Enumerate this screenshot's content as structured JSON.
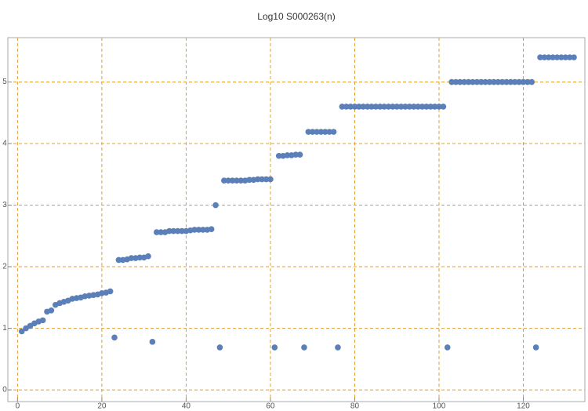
{
  "chart_data": {
    "type": "scatter",
    "title": "Log10 S000263(n)",
    "x": [
      1,
      2,
      3,
      4,
      5,
      6,
      7,
      8,
      9,
      10,
      11,
      12,
      13,
      14,
      15,
      16,
      17,
      18,
      19,
      20,
      21,
      22,
      23,
      24,
      25,
      26,
      27,
      28,
      29,
      30,
      31,
      32,
      33,
      34,
      35,
      36,
      37,
      38,
      39,
      40,
      41,
      42,
      43,
      44,
      45,
      46,
      47,
      48,
      49,
      50,
      51,
      52,
      53,
      54,
      55,
      56,
      57,
      58,
      59,
      60,
      61,
      62,
      63,
      64,
      65,
      66,
      67,
      68,
      69,
      70,
      71,
      72,
      73,
      74,
      75,
      76,
      77,
      78,
      79,
      80,
      81,
      82,
      83,
      84,
      85,
      86,
      87,
      88,
      89,
      90,
      91,
      92,
      93,
      94,
      95,
      96,
      97,
      98,
      99,
      100,
      101,
      102,
      103,
      104,
      105,
      106,
      107,
      108,
      109,
      110,
      111,
      112,
      113,
      114,
      115,
      116,
      117,
      118,
      119,
      120,
      121,
      122,
      123,
      124,
      125,
      126,
      127,
      128,
      129,
      130,
      131,
      132
    ],
    "values": [
      0.95,
      1.0,
      1.04,
      1.08,
      1.11,
      1.13,
      1.27,
      1.29,
      1.38,
      1.41,
      1.43,
      1.45,
      1.48,
      1.49,
      1.5,
      1.52,
      1.53,
      1.54,
      1.55,
      1.57,
      1.58,
      1.6,
      0.85,
      2.11,
      2.11,
      2.12,
      2.14,
      2.14,
      2.15,
      2.15,
      2.17,
      0.78,
      2.56,
      2.56,
      2.56,
      2.58,
      2.58,
      2.58,
      2.58,
      2.58,
      2.59,
      2.6,
      2.6,
      2.6,
      2.6,
      2.61,
      3.0,
      0.69,
      3.4,
      3.4,
      3.4,
      3.4,
      3.4,
      3.4,
      3.41,
      3.41,
      3.42,
      3.42,
      3.42,
      3.42,
      0.69,
      3.8,
      3.8,
      3.81,
      3.81,
      3.82,
      3.82,
      0.69,
      4.19,
      4.19,
      4.19,
      4.19,
      4.19,
      4.19,
      4.19,
      0.69,
      4.6,
      4.6,
      4.6,
      4.6,
      4.6,
      4.6,
      4.6,
      4.6,
      4.6,
      4.6,
      4.6,
      4.6,
      4.6,
      4.6,
      4.6,
      4.6,
      4.6,
      4.6,
      4.6,
      4.6,
      4.6,
      4.6,
      4.6,
      4.6,
      4.6,
      0.69,
      5.0,
      5.0,
      5.0,
      5.0,
      5.0,
      5.0,
      5.0,
      5.0,
      5.0,
      5.0,
      5.0,
      5.0,
      5.0,
      5.0,
      5.0,
      5.0,
      5.0,
      5.0,
      5.0,
      5.0,
      0.69,
      5.4,
      5.4,
      5.4,
      5.4,
      5.4,
      5.4,
      5.4,
      5.4,
      5.4
    ],
    "color": "#5b7fb8",
    "grid_color": "#e0a030",
    "xlim": [
      -2.3,
      134.6
    ],
    "ylim": [
      -0.19,
      5.72
    ],
    "xticks": [
      0,
      20,
      40,
      60,
      80,
      100,
      120
    ],
    "yticks": [
      0,
      1,
      2,
      3,
      4,
      5
    ],
    "grid": true
  }
}
